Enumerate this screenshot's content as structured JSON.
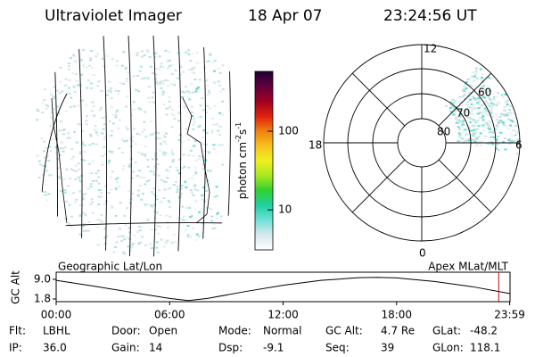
{
  "header": {
    "instrument": "Ultraviolet Imager",
    "date": "18 Apr 07",
    "time": "23:24:56 UT"
  },
  "panels": {
    "left_label": "Geographic Lat/Lon",
    "right_label": "Apex MLat/MLT"
  },
  "colorbar": {
    "label": [
      "photon cm",
      "-2",
      "s",
      "-1"
    ],
    "lim": [
      3.1,
      575
    ],
    "log": true,
    "ticks": [
      10,
      100
    ],
    "colors": [
      "#ffffff",
      "#d8e8ec",
      "#6fe0d8",
      "#20d0a0",
      "#30d030",
      "#a8e820",
      "#f0f020",
      "#f8c020",
      "#f08010",
      "#e02010",
      "#a00020",
      "#600040",
      "#200030"
    ]
  },
  "polar": {
    "mlt_labels": [
      "12",
      "6",
      "0",
      "18"
    ],
    "lat_labels": [
      "60",
      "70",
      "80"
    ]
  },
  "gc_alt": {
    "ylabel": "GC Alt",
    "ylim": [
      0.8,
      11.6
    ],
    "yticks": [
      {
        "value": 9.0,
        "label": "9.0"
      },
      {
        "value": 1.8,
        "label": "1.8"
      }
    ],
    "xlim": [
      0,
      24
    ],
    "xticks": [
      {
        "value": 0,
        "label": "00:00"
      },
      {
        "value": 6,
        "label": "06:00"
      },
      {
        "value": 12,
        "label": "12:00"
      },
      {
        "value": 18,
        "label": "18:00"
      },
      {
        "value": 23.98,
        "label": "23:59"
      }
    ],
    "x": [
      0,
      2,
      4,
      6,
      7,
      8,
      10,
      12,
      14,
      16,
      17,
      18,
      20,
      22,
      23.98
    ],
    "values": [
      8.6,
      6.5,
      4.2,
      2.0,
      1.2,
      2.0,
      4.5,
      6.8,
      8.6,
      9.6,
      9.7,
      9.5,
      8.2,
      6.3,
      3.8
    ],
    "current_time": 23.4,
    "line_color": "#000000",
    "marker_color": "#cc0000"
  },
  "info": [
    [
      [
        "Flt:",
        "LBHL"
      ],
      [
        "Door:",
        "Open"
      ],
      [
        "Mode:",
        "Normal"
      ],
      [
        "GC Alt:",
        "4.7 Re"
      ],
      [
        "GLat:",
        "-48.2"
      ]
    ],
    [
      [
        "IP:",
        "36.0"
      ],
      [
        "Gain:",
        "14"
      ],
      [
        "Dsp:",
        "-9.1"
      ],
      [
        "Seq:",
        "39"
      ],
      [
        "GLon:",
        "118.1"
      ]
    ]
  ]
}
